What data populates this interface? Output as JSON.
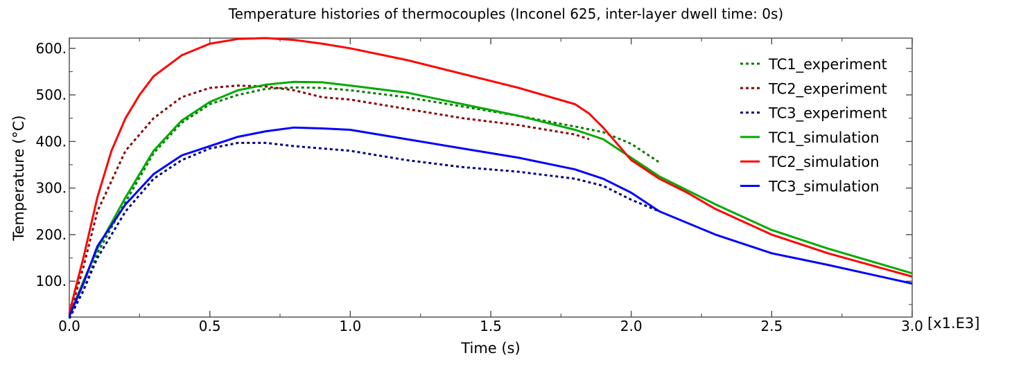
{
  "chart_data": {
    "type": "line",
    "title": "Temperature histories of thermocouples (Inconel 625, inter-layer dwell time: 0s)",
    "xlabel": "Time (s)",
    "ylabel": "Temperature (°C)",
    "x_multiplier_label": "[x1.E3]",
    "xlim": [
      0,
      3.0
    ],
    "ylim": [
      23,
      622
    ],
    "xticks": [
      0,
      0.5,
      1.0,
      1.5,
      2.0,
      2.5,
      3.0
    ],
    "xtick_labels": [
      "0.0",
      "0.5",
      "1.0",
      "1.5",
      "2.0",
      "2.5",
      "3.0"
    ],
    "yticks": [
      100,
      200,
      300,
      400,
      500,
      600
    ],
    "ytick_labels": [
      "100.",
      "200.",
      "300.",
      "400.",
      "500.",
      "600."
    ],
    "grid": false,
    "legend_position": "top-right",
    "series": [
      {
        "name": "TC1_experiment",
        "color": "#007a00",
        "style": "dotted",
        "x": [
          0,
          0.05,
          0.1,
          0.2,
          0.3,
          0.4,
          0.5,
          0.6,
          0.7,
          0.8,
          0.9,
          1.0,
          1.2,
          1.4,
          1.6,
          1.8,
          1.9,
          2.0,
          2.1
        ],
        "y": [
          20,
          80,
          160,
          270,
          375,
          440,
          480,
          500,
          513,
          516,
          515,
          510,
          495,
          475,
          455,
          432,
          420,
          395,
          355
        ]
      },
      {
        "name": "TC2_experiment",
        "color": "#8b0000",
        "style": "dotted",
        "x": [
          0,
          0.05,
          0.1,
          0.2,
          0.3,
          0.4,
          0.5,
          0.6,
          0.7,
          0.8,
          0.9,
          1.0,
          1.2,
          1.4,
          1.6,
          1.8,
          1.85
        ],
        "y": [
          25,
          130,
          250,
          380,
          450,
          495,
          515,
          520,
          518,
          510,
          495,
          490,
          470,
          450,
          435,
          415,
          405
        ]
      },
      {
        "name": "TC3_experiment",
        "color": "#00007f",
        "style": "dotted",
        "x": [
          0,
          0.05,
          0.1,
          0.2,
          0.3,
          0.4,
          0.5,
          0.6,
          0.7,
          0.8,
          1.0,
          1.2,
          1.4,
          1.6,
          1.8,
          1.9,
          2.0,
          2.1
        ],
        "y": [
          20,
          80,
          150,
          250,
          320,
          360,
          385,
          397,
          397,
          390,
          380,
          360,
          345,
          335,
          320,
          305,
          275,
          250
        ]
      },
      {
        "name": "TC1_simulation",
        "color": "#00aa00",
        "style": "solid",
        "x": [
          0,
          0.05,
          0.1,
          0.2,
          0.3,
          0.4,
          0.5,
          0.6,
          0.7,
          0.8,
          0.9,
          1.0,
          1.2,
          1.4,
          1.6,
          1.8,
          1.9,
          2.0,
          2.1,
          2.2,
          2.3,
          2.5,
          2.7,
          3.0
        ],
        "y": [
          25,
          100,
          170,
          280,
          380,
          445,
          485,
          510,
          522,
          528,
          527,
          520,
          505,
          480,
          455,
          425,
          405,
          365,
          325,
          295,
          265,
          210,
          170,
          117
        ]
      },
      {
        "name": "TC2_simulation",
        "color": "#ff0000",
        "style": "solid",
        "x": [
          0,
          0.02,
          0.05,
          0.1,
          0.15,
          0.2,
          0.25,
          0.3,
          0.4,
          0.5,
          0.6,
          0.7,
          0.8,
          0.9,
          1.0,
          1.2,
          1.4,
          1.6,
          1.8,
          1.85,
          1.9,
          1.95,
          2.0,
          2.1,
          2.2,
          2.3,
          2.5,
          2.7,
          3.0
        ],
        "y": [
          30,
          80,
          150,
          280,
          380,
          450,
          500,
          540,
          585,
          610,
          620,
          622,
          618,
          610,
          600,
          575,
          545,
          515,
          480,
          460,
          430,
          395,
          360,
          320,
          290,
          255,
          200,
          160,
          110
        ]
      },
      {
        "name": "TC3_simulation",
        "color": "#0000ff",
        "style": "solid",
        "x": [
          0,
          0.05,
          0.1,
          0.2,
          0.3,
          0.4,
          0.5,
          0.6,
          0.7,
          0.8,
          0.9,
          1.0,
          1.2,
          1.4,
          1.6,
          1.8,
          1.9,
          2.0,
          2.1,
          2.3,
          2.5,
          2.7,
          3.0
        ],
        "y": [
          25,
          95,
          175,
          265,
          330,
          370,
          390,
          410,
          422,
          430,
          428,
          425,
          405,
          385,
          365,
          340,
          320,
          290,
          250,
          200,
          160,
          135,
          95
        ]
      }
    ]
  }
}
